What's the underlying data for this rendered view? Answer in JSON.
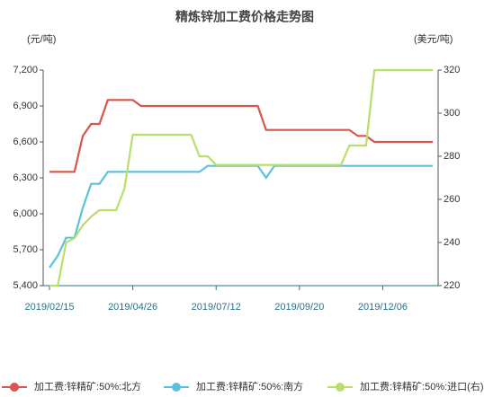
{
  "chart_data": {
    "type": "line",
    "title": "精炼锌加工费价格走势图",
    "y_label": "(元/吨)",
    "y2_label": "(美元/吨)",
    "categories": [
      "2019/02/15",
      null,
      null,
      null,
      null,
      null,
      null,
      null,
      null,
      null,
      "2019/04/26",
      null,
      null,
      null,
      null,
      null,
      null,
      null,
      null,
      null,
      "2019/07/12",
      null,
      null,
      null,
      null,
      null,
      null,
      null,
      null,
      null,
      "2019/09/20",
      null,
      null,
      null,
      null,
      null,
      null,
      null,
      null,
      null,
      "2019/12/06",
      null,
      null,
      null,
      null,
      null,
      null
    ],
    "ylim": [
      5400,
      7200
    ],
    "yticks": [
      {
        "value": 5400,
        "label": "5,400"
      },
      {
        "value": 5700,
        "label": "5,700"
      },
      {
        "value": 6000,
        "label": "6,000"
      },
      {
        "value": 6300,
        "label": "6,300"
      },
      {
        "value": 6600,
        "label": "6,600"
      },
      {
        "value": 6900,
        "label": "6,900"
      },
      {
        "value": 7200,
        "label": "7,200"
      }
    ],
    "y2lim": [
      220,
      320
    ],
    "y2ticks": [
      220,
      240,
      260,
      280,
      300,
      320
    ],
    "legend": "bottom",
    "series": [
      {
        "name": "加工费:锌精矿:50%:北方",
        "color": "#d9534f",
        "values": [
          6350,
          6350,
          6350,
          6350,
          6650,
          6750,
          6750,
          6950,
          6950,
          6950,
          6950,
          6900,
          6900,
          6900,
          6900,
          6900,
          6900,
          6900,
          6900,
          6900,
          6900,
          6900,
          6900,
          6900,
          6900,
          6900,
          6700,
          6700,
          6700,
          6700,
          6700,
          6700,
          6700,
          6700,
          6700,
          6700,
          6700,
          6650,
          6650,
          6600,
          6600,
          6600,
          6600,
          6600,
          6600,
          6600,
          6600
        ]
      },
      {
        "name": "加工费:锌精矿:50%:南方",
        "color": "#5bc0de",
        "values": [
          5550,
          5650,
          5800,
          5800,
          6050,
          6250,
          6250,
          6350,
          6350,
          6350,
          6350,
          6350,
          6350,
          6350,
          6350,
          6350,
          6350,
          6350,
          6350,
          6400,
          6400,
          6400,
          6400,
          6400,
          6400,
          6400,
          6300,
          6400,
          6400,
          6400,
          6400,
          6400,
          6400,
          6400,
          6400,
          6400,
          6400,
          6400,
          6400,
          6400,
          6400,
          6400,
          6400,
          6400,
          6400,
          6400,
          6400
        ]
      },
      {
        "name": "加工费:锌精矿:50%:进口(右)",
        "color": "#b8df6a",
        "axis": "y2",
        "values": [
          220,
          220,
          240,
          242,
          248,
          252,
          255,
          255,
          255,
          265,
          290,
          290,
          290,
          290,
          290,
          290,
          290,
          290,
          280,
          280,
          276,
          276,
          276,
          276,
          276,
          276,
          276,
          276,
          276,
          276,
          276,
          276,
          276,
          276,
          276,
          276,
          285,
          285,
          285,
          320,
          320,
          320,
          320,
          320,
          320,
          320,
          320
        ]
      }
    ]
  }
}
